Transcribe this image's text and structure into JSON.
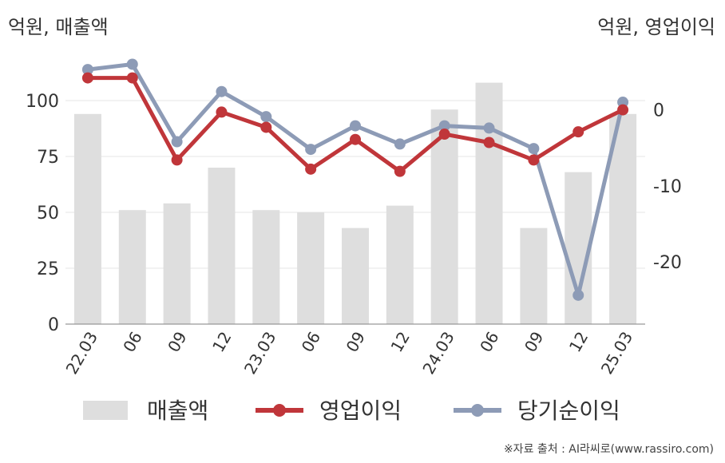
{
  "left_unit": "억원, 매출액",
  "right_unit": "억원, 영업이익",
  "source": "※자료 출처 : AI라씨로(www.rassiro.com)",
  "colors": {
    "revenue": "#dedede",
    "operating_profit": "#c0363a",
    "net_income": "#8d9bb6",
    "grid": "#e6e6e6",
    "axis": "#999999"
  },
  "chart_data": {
    "type": "bar",
    "categories": [
      "22.03",
      "06",
      "09",
      "12",
      "23.03",
      "06",
      "09",
      "12",
      "24.03",
      "06",
      "09",
      "12",
      "25.03"
    ],
    "y_left": {
      "ylim": [
        0,
        120
      ],
      "ticks": [
        0,
        25,
        50,
        75,
        100
      ]
    },
    "y_right": {
      "ylim": [
        -28.2,
        7.1
      ],
      "ticks": [
        -20,
        -10,
        0
      ]
    },
    "series": [
      {
        "name": "매출액",
        "type": "bar",
        "axis": "left",
        "values": [
          94,
          51,
          54,
          70,
          51,
          50,
          43,
          53,
          96,
          108,
          43,
          68,
          94
        ]
      },
      {
        "name": "영업이익",
        "type": "line",
        "axis": "right",
        "values": [
          4.2,
          4.2,
          -6.6,
          -0.3,
          -2.3,
          -7.8,
          -3.9,
          -8.1,
          -3.2,
          -4.3,
          -6.6,
          -2.9,
          0.0
        ]
      },
      {
        "name": "당기순이익",
        "type": "line",
        "axis": "right",
        "values": [
          5.3,
          6.0,
          -4.2,
          2.4,
          -0.9,
          -5.2,
          -2.1,
          -4.5,
          -2.1,
          -2.4,
          -5.1,
          -24.4,
          1.0
        ]
      }
    ],
    "legend": "bottom"
  }
}
